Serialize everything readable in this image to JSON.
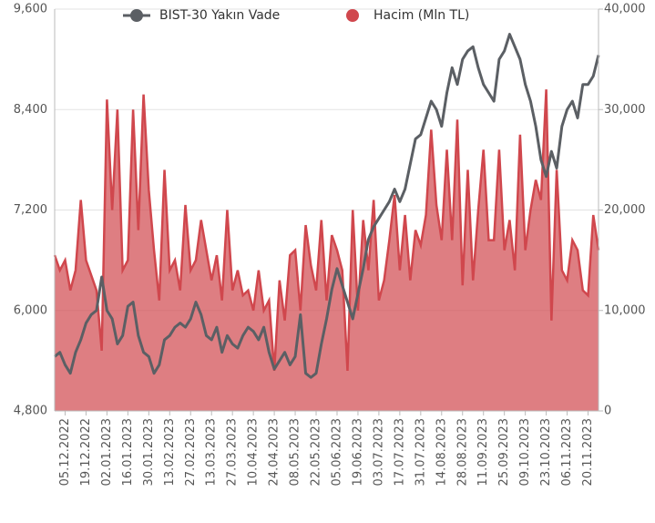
{
  "chart_data": {
    "type": "combo",
    "categories": [
      null,
      null,
      "05.12.2022",
      null,
      null,
      null,
      "19.12.2022",
      null,
      null,
      null,
      "02.01.2023",
      null,
      null,
      null,
      "16.01.2023",
      null,
      null,
      null,
      "30.01.2023",
      null,
      null,
      null,
      "13.02.2023",
      null,
      null,
      null,
      "27.02.2023",
      null,
      null,
      null,
      "13.03.2023",
      null,
      null,
      null,
      "27.03.2023",
      null,
      null,
      null,
      "10.04.2023",
      null,
      null,
      null,
      "24.04.2023",
      null,
      null,
      null,
      "08.05.2023",
      null,
      null,
      null,
      "22.05.2023",
      null,
      null,
      null,
      "05.06.2023",
      null,
      null,
      null,
      "19.06.2023",
      null,
      null,
      null,
      "03.07.2023",
      null,
      null,
      null,
      "17.07.2023",
      null,
      null,
      null,
      "31.07.2023",
      null,
      null,
      null,
      "14.08.2023",
      null,
      null,
      null,
      "28.08.2023",
      null,
      null,
      null,
      "11.09.2023",
      null,
      null,
      null,
      "25.09.2023",
      null,
      null,
      null,
      "09.10.2023",
      null,
      null,
      null,
      "23.10.2023",
      null,
      null,
      null,
      "06.11.2023",
      null,
      null,
      null,
      "20.11.2023",
      null,
      null
    ],
    "series": [
      {
        "name": "Hacim (Mln TL)",
        "type": "area",
        "axis": "y2",
        "color": "#d0474d",
        "values": [
          15500,
          14000,
          15000,
          12000,
          14000,
          21000,
          15000,
          13500,
          12000,
          6000,
          31000,
          20000,
          30000,
          14000,
          15000,
          30000,
          18000,
          31500,
          22000,
          16000,
          11000,
          24000,
          14000,
          15000,
          12000,
          20500,
          14000,
          15000,
          19000,
          16000,
          13000,
          15500,
          11000,
          20000,
          12000,
          14000,
          11500,
          12000,
          10000,
          14000,
          10000,
          11000,
          4000,
          13000,
          9000,
          15500,
          16000,
          10000,
          18500,
          14500,
          12000,
          19000,
          11000,
          17500,
          16000,
          14000,
          4000,
          20000,
          10000,
          19000,
          14000,
          21000,
          11000,
          13000,
          17000,
          21500,
          14000,
          19500,
          13000,
          18000,
          16500,
          19500,
          28000,
          20500,
          17000,
          26000,
          17000,
          29000,
          12500,
          24000,
          13000,
          20000,
          26000,
          17000,
          17000,
          26000,
          16000,
          19000,
          14000,
          27500,
          16000,
          20000,
          23000,
          21000,
          32000,
          9000,
          24000,
          14000,
          13000,
          17000,
          16000,
          12000,
          11500,
          19500,
          16000
        ]
      },
      {
        "name": "BIST-30 Yakın Vade",
        "type": "line",
        "color": "#5b5f64",
        "values": [
          5450,
          5500,
          5350,
          5250,
          5500,
          5650,
          5850,
          5950,
          6000,
          6400,
          6000,
          5900,
          5600,
          5700,
          6050,
          6100,
          5700,
          5500,
          5450,
          5250,
          5350,
          5650,
          5700,
          5800,
          5850,
          5800,
          5900,
          6100,
          5950,
          5700,
          5650,
          5800,
          5500,
          5700,
          5600,
          5550,
          5700,
          5800,
          5750,
          5650,
          5800,
          5500,
          5300,
          5400,
          5500,
          5350,
          5450,
          5950,
          5250,
          5200,
          5250,
          5600,
          5900,
          6250,
          6500,
          6300,
          6100,
          5900,
          6200,
          6500,
          6850,
          7000,
          7100,
          7200,
          7300,
          7450,
          7300,
          7450,
          7750,
          8050,
          8100,
          8300,
          8500,
          8400,
          8200,
          8600,
          8900,
          8700,
          9000,
          9100,
          9150,
          8900,
          8700,
          8600,
          8500,
          9000,
          9100,
          9300,
          9150,
          9000,
          8700,
          8500,
          8200,
          7800,
          7600,
          7900,
          7700,
          8200,
          8400,
          8500,
          8300,
          8700,
          8700,
          8800,
          9050
        ]
      }
    ],
    "ylim": [
      4800,
      9600
    ],
    "yticks": [
      {
        "value": 4800,
        "label": "4,800"
      },
      {
        "value": 6000,
        "label": "6,000"
      },
      {
        "value": 7200,
        "label": "7,200"
      },
      {
        "value": 8400,
        "label": "8,400"
      },
      {
        "value": 9600,
        "label": "9,600"
      }
    ],
    "y2lim": [
      0,
      40000
    ],
    "y2ticks": [
      0,
      {
        "value": 10000,
        "label": "10,000"
      },
      {
        "value": 20000,
        "label": "20,000"
      },
      {
        "value": 30000,
        "label": "30,000"
      },
      {
        "value": 40000,
        "label": "40,000"
      }
    ],
    "grid": true,
    "legend": "top"
  }
}
